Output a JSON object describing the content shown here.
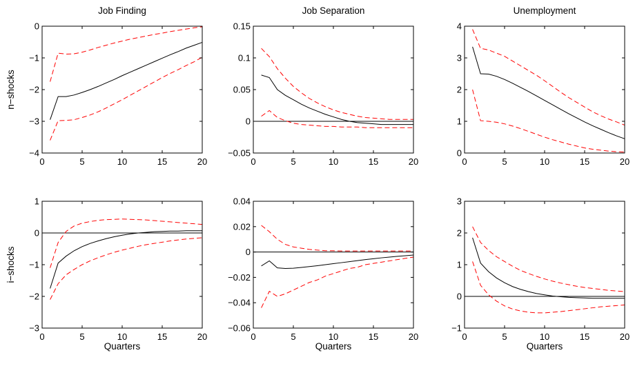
{
  "chart_data": [
    {
      "type": "line",
      "row": 0,
      "col": 0,
      "title": "Job Finding",
      "ylabel": "n−shocks",
      "xlabel": "",
      "xlim": [
        0,
        20
      ],
      "ylim": [
        -4,
        0
      ],
      "xticks": [
        0,
        5,
        10,
        15,
        20
      ],
      "yticks": [
        -4,
        -3,
        -2,
        -1,
        0
      ],
      "xtick_labels": [
        "0",
        "5",
        "10",
        "15",
        "20"
      ],
      "ytick_labels": [
        "−4",
        "−3",
        "−2",
        "−1",
        "0"
      ],
      "zero_line": false,
      "x": [
        1,
        2,
        3,
        4,
        5,
        6,
        7,
        8,
        9,
        10,
        11,
        12,
        13,
        14,
        15,
        16,
        17,
        18,
        19,
        20
      ],
      "series": [
        {
          "role": "irf",
          "values": [
            -2.95,
            -2.22,
            -2.22,
            -2.17,
            -2.09,
            -2.0,
            -1.9,
            -1.79,
            -1.68,
            -1.56,
            -1.45,
            -1.34,
            -1.23,
            -1.12,
            -1.01,
            -0.9,
            -0.8,
            -0.69,
            -0.6,
            -0.51
          ]
        },
        {
          "role": "upper",
          "values": [
            -1.75,
            -0.85,
            -0.88,
            -0.87,
            -0.82,
            -0.75,
            -0.67,
            -0.6,
            -0.53,
            -0.47,
            -0.41,
            -0.36,
            -0.31,
            -0.26,
            -0.22,
            -0.17,
            -0.13,
            -0.09,
            -0.05,
            -0.02
          ]
        },
        {
          "role": "lower",
          "values": [
            -3.6,
            -2.98,
            -2.97,
            -2.95,
            -2.88,
            -2.8,
            -2.7,
            -2.58,
            -2.45,
            -2.32,
            -2.18,
            -2.04,
            -1.9,
            -1.76,
            -1.62,
            -1.49,
            -1.37,
            -1.24,
            -1.12,
            -0.98
          ]
        }
      ]
    },
    {
      "type": "line",
      "row": 0,
      "col": 1,
      "title": "Job Separation",
      "ylabel": "",
      "xlabel": "",
      "xlim": [
        0,
        20
      ],
      "ylim": [
        -0.05,
        0.15
      ],
      "xticks": [
        0,
        5,
        10,
        15,
        20
      ],
      "yticks": [
        -0.05,
        0,
        0.05,
        0.1,
        0.15
      ],
      "xtick_labels": [
        "0",
        "5",
        "10",
        "15",
        "20"
      ],
      "ytick_labels": [
        "−0.05",
        "0",
        "0.05",
        "0.1",
        "0.15"
      ],
      "zero_line": true,
      "x": [
        1,
        2,
        3,
        4,
        5,
        6,
        7,
        8,
        9,
        10,
        11,
        12,
        13,
        14,
        15,
        16,
        17,
        18,
        19,
        20
      ],
      "series": [
        {
          "role": "irf",
          "values": [
            0.073,
            0.069,
            0.05,
            0.041,
            0.034,
            0.027,
            0.021,
            0.016,
            0.011,
            0.007,
            0.003,
            0.0,
            -0.002,
            -0.003,
            -0.004,
            -0.005,
            -0.005,
            -0.005,
            -0.005,
            -0.005
          ]
        },
        {
          "role": "upper",
          "values": [
            0.115,
            0.102,
            0.083,
            0.068,
            0.055,
            0.045,
            0.036,
            0.029,
            0.023,
            0.018,
            0.014,
            0.011,
            0.008,
            0.006,
            0.005,
            0.004,
            0.003,
            0.003,
            0.003,
            0.003
          ]
        },
        {
          "role": "lower",
          "values": [
            0.008,
            0.017,
            0.006,
            0.001,
            -0.003,
            -0.005,
            -0.006,
            -0.007,
            -0.008,
            -0.008,
            -0.009,
            -0.009,
            -0.009,
            -0.01,
            -0.01,
            -0.01,
            -0.01,
            -0.01,
            -0.01,
            -0.01
          ]
        }
      ]
    },
    {
      "type": "line",
      "row": 0,
      "col": 2,
      "title": "Unemployment",
      "ylabel": "",
      "xlabel": "",
      "xlim": [
        0,
        20
      ],
      "ylim": [
        0,
        4
      ],
      "xticks": [
        0,
        5,
        10,
        15,
        20
      ],
      "yticks": [
        0,
        1,
        2,
        3,
        4
      ],
      "xtick_labels": [
        "0",
        "5",
        "10",
        "15",
        "20"
      ],
      "ytick_labels": [
        "0",
        "1",
        "2",
        "3",
        "4"
      ],
      "zero_line": false,
      "x": [
        1,
        2,
        3,
        4,
        5,
        6,
        7,
        8,
        9,
        10,
        11,
        12,
        13,
        14,
        15,
        16,
        17,
        18,
        19,
        20
      ],
      "series": [
        {
          "role": "irf",
          "values": [
            3.35,
            2.5,
            2.49,
            2.42,
            2.32,
            2.2,
            2.07,
            1.94,
            1.8,
            1.66,
            1.52,
            1.38,
            1.24,
            1.11,
            0.98,
            0.86,
            0.75,
            0.64,
            0.54,
            0.45
          ]
        },
        {
          "role": "upper",
          "values": [
            3.9,
            3.3,
            3.25,
            3.15,
            3.05,
            2.9,
            2.75,
            2.6,
            2.45,
            2.28,
            2.1,
            1.92,
            1.75,
            1.6,
            1.45,
            1.3,
            1.18,
            1.07,
            0.98,
            0.88
          ]
        },
        {
          "role": "lower",
          "values": [
            2.0,
            1.02,
            1.0,
            0.97,
            0.92,
            0.85,
            0.77,
            0.68,
            0.59,
            0.5,
            0.42,
            0.35,
            0.28,
            0.22,
            0.16,
            0.12,
            0.09,
            0.06,
            0.04,
            0.03
          ]
        }
      ]
    },
    {
      "type": "line",
      "row": 1,
      "col": 0,
      "title": "",
      "ylabel": "i−shocks",
      "xlabel": "Quarters",
      "xlim": [
        0,
        20
      ],
      "ylim": [
        -3,
        1
      ],
      "xticks": [
        0,
        5,
        10,
        15,
        20
      ],
      "yticks": [
        -3,
        -2,
        -1,
        0,
        1
      ],
      "xtick_labels": [
        "0",
        "5",
        "10",
        "15",
        "20"
      ],
      "ytick_labels": [
        "−3",
        "−2",
        "−1",
        "0",
        "1"
      ],
      "zero_line": true,
      "x": [
        1,
        2,
        3,
        4,
        5,
        6,
        7,
        8,
        9,
        10,
        11,
        12,
        13,
        14,
        15,
        16,
        17,
        18,
        19,
        20
      ],
      "series": [
        {
          "role": "irf",
          "values": [
            -1.75,
            -0.95,
            -0.73,
            -0.56,
            -0.43,
            -0.33,
            -0.25,
            -0.18,
            -0.12,
            -0.07,
            -0.03,
            0.0,
            0.02,
            0.04,
            0.05,
            0.06,
            0.06,
            0.07,
            0.07,
            0.07
          ]
        },
        {
          "role": "upper",
          "values": [
            -1.1,
            -0.3,
            0.05,
            0.22,
            0.31,
            0.36,
            0.4,
            0.42,
            0.43,
            0.44,
            0.43,
            0.42,
            0.41,
            0.39,
            0.37,
            0.35,
            0.33,
            0.31,
            0.29,
            0.27
          ]
        },
        {
          "role": "lower",
          "values": [
            -2.1,
            -1.6,
            -1.32,
            -1.15,
            -1.0,
            -0.88,
            -0.78,
            -0.69,
            -0.61,
            -0.54,
            -0.48,
            -0.42,
            -0.37,
            -0.33,
            -0.29,
            -0.25,
            -0.22,
            -0.19,
            -0.17,
            -0.15
          ]
        }
      ]
    },
    {
      "type": "line",
      "row": 1,
      "col": 1,
      "title": "",
      "ylabel": "",
      "xlabel": "Quarters",
      "xlim": [
        0,
        20
      ],
      "ylim": [
        -0.06,
        0.04
      ],
      "xticks": [
        0,
        5,
        10,
        15,
        20
      ],
      "yticks": [
        -0.06,
        -0.04,
        -0.02,
        0,
        0.02,
        0.04
      ],
      "xtick_labels": [
        "0",
        "5",
        "10",
        "15",
        "20"
      ],
      "ytick_labels": [
        "−0.06",
        "−0.04",
        "−0.02",
        "0",
        "0.02",
        "0.04"
      ],
      "zero_line": true,
      "x": [
        1,
        2,
        3,
        4,
        5,
        6,
        7,
        8,
        9,
        10,
        11,
        12,
        13,
        14,
        15,
        16,
        17,
        18,
        19,
        20
      ],
      "series": [
        {
          "role": "irf",
          "values": [
            -0.011,
            -0.007,
            -0.0125,
            -0.013,
            -0.0128,
            -0.0122,
            -0.0115,
            -0.0108,
            -0.01,
            -0.0092,
            -0.0084,
            -0.0076,
            -0.0068,
            -0.006,
            -0.0053,
            -0.0046,
            -0.004,
            -0.0034,
            -0.0029,
            -0.0024
          ]
        },
        {
          "role": "upper",
          "values": [
            0.021,
            0.016,
            0.01,
            0.006,
            0.004,
            0.003,
            0.002,
            0.0015,
            0.001,
            0.001,
            0.0008,
            0.0008,
            0.0008,
            0.0008,
            0.0008,
            0.0008,
            0.0008,
            0.0008,
            0.0008,
            0.0008
          ]
        },
        {
          "role": "lower",
          "values": [
            -0.044,
            -0.031,
            -0.035,
            -0.033,
            -0.03,
            -0.027,
            -0.024,
            -0.022,
            -0.019,
            -0.017,
            -0.015,
            -0.013,
            -0.012,
            -0.01,
            -0.009,
            -0.008,
            -0.007,
            -0.006,
            -0.005,
            -0.004
          ]
        }
      ]
    },
    {
      "type": "line",
      "row": 1,
      "col": 2,
      "title": "",
      "ylabel": "",
      "xlabel": "Quarters",
      "xlim": [
        0,
        20
      ],
      "ylim": [
        -1,
        3
      ],
      "xticks": [
        0,
        5,
        10,
        15,
        20
      ],
      "yticks": [
        -1,
        0,
        1,
        2,
        3
      ],
      "xtick_labels": [
        "0",
        "5",
        "10",
        "15",
        "20"
      ],
      "ytick_labels": [
        "−1",
        "0",
        "1",
        "2",
        "3"
      ],
      "zero_line": true,
      "x": [
        1,
        2,
        3,
        4,
        5,
        6,
        7,
        8,
        9,
        10,
        11,
        12,
        13,
        14,
        15,
        16,
        17,
        18,
        19,
        20
      ],
      "series": [
        {
          "role": "irf",
          "values": [
            1.85,
            1.05,
            0.78,
            0.58,
            0.43,
            0.31,
            0.22,
            0.15,
            0.09,
            0.05,
            0.01,
            -0.01,
            -0.03,
            -0.04,
            -0.05,
            -0.06,
            -0.06,
            -0.06,
            -0.06,
            -0.06
          ]
        },
        {
          "role": "upper",
          "values": [
            2.2,
            1.7,
            1.45,
            1.25,
            1.1,
            0.95,
            0.82,
            0.72,
            0.63,
            0.55,
            0.48,
            0.42,
            0.37,
            0.32,
            0.28,
            0.25,
            0.22,
            0.19,
            0.17,
            0.15
          ]
        },
        {
          "role": "lower",
          "values": [
            1.1,
            0.35,
            0.05,
            -0.15,
            -0.3,
            -0.4,
            -0.46,
            -0.5,
            -0.52,
            -0.52,
            -0.5,
            -0.48,
            -0.45,
            -0.42,
            -0.39,
            -0.36,
            -0.33,
            -0.31,
            -0.29,
            -0.27
          ]
        }
      ]
    }
  ]
}
